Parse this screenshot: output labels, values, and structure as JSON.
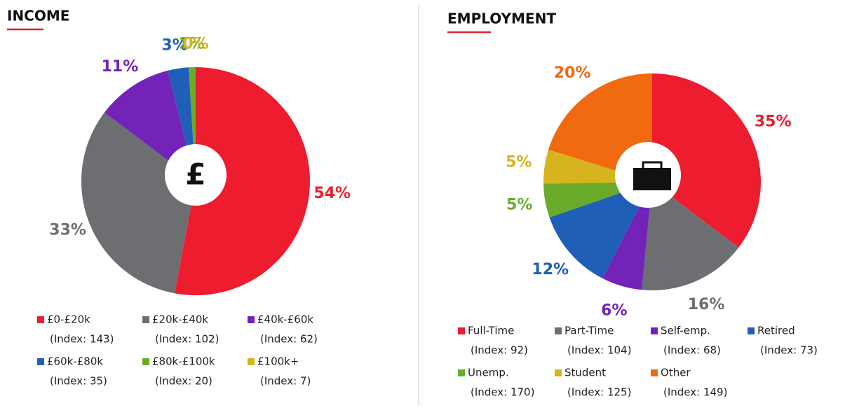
{
  "chart_data": [
    {
      "type": "pie",
      "title": "INCOME",
      "center_label": "£",
      "categories": [
        "£0-£20k",
        "£20k-£40k",
        "£40k-£60k",
        "£60k-£80k",
        "£80k-£100k",
        "£100k+"
      ],
      "index_labels": [
        "(Index: 143)",
        "(Index: 102)",
        "(Index: 62)",
        "(Index: 35)",
        "(Index: 20)",
        "(Index: 7)"
      ],
      "values": [
        54,
        33,
        11,
        3,
        1,
        0
      ],
      "value_labels": [
        "54%",
        "33%",
        "11%",
        "3%",
        "1%",
        "0%"
      ],
      "colors": [
        "#ed1c2e",
        "#6d6e71",
        "#7323b8",
        "#1f5fb8",
        "#6aab2a",
        "#d6b41e"
      ]
    },
    {
      "type": "pie",
      "title": "EMPLOYMENT",
      "categories": [
        "Full-Time",
        "Part-Time",
        "Self-emp.",
        "Retired",
        "Unemp.",
        "Student",
        "Other"
      ],
      "index_labels": [
        "(Index: 92)",
        "(Index: 104)",
        "(Index: 68)",
        "(Index: 73)",
        "(Index: 170)",
        "(Index: 125)",
        "(Index: 149)"
      ],
      "values": [
        35,
        16,
        6,
        12,
        5,
        5,
        20
      ],
      "value_labels": [
        "35%",
        "16%",
        "6%",
        "12%",
        "5%",
        "5%",
        "20%"
      ],
      "colors": [
        "#ed1c2e",
        "#6d6e71",
        "#7323b8",
        "#1f5fb8",
        "#6aab2a",
        "#d6b41e",
        "#f26a10"
      ]
    }
  ]
}
